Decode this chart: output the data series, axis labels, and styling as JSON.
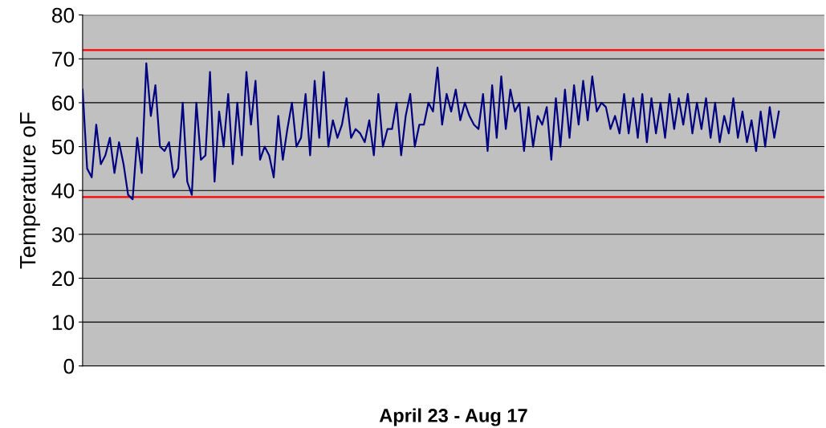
{
  "chart_data": {
    "type": "line",
    "xlabel": "April 23 - Aug 17",
    "ylabel": "Temperature oF",
    "categories": [
      null,
      null,
      null,
      null,
      null,
      null,
      null,
      null,
      null,
      null,
      null,
      null,
      null,
      null,
      null,
      null,
      null,
      null,
      null,
      null,
      null,
      null,
      null,
      null,
      null,
      null,
      null,
      null,
      null,
      null,
      null,
      null,
      null,
      null,
      null,
      null,
      null,
      null,
      null,
      null,
      null,
      null,
      null,
      null,
      null,
      null,
      null,
      null,
      null,
      null,
      null,
      null,
      null,
      null,
      null,
      null,
      null,
      null,
      null,
      null,
      null,
      null,
      null,
      null,
      null,
      null,
      null,
      null,
      null,
      null,
      null,
      null,
      null,
      null,
      null,
      null,
      null,
      null,
      null,
      null,
      null,
      null,
      null,
      null,
      null,
      null,
      null,
      null,
      null,
      null,
      null,
      null,
      null,
      null,
      null,
      null,
      null,
      null,
      null,
      null,
      null,
      null,
      null,
      null,
      null,
      null,
      null,
      null,
      null,
      null,
      null,
      null,
      null,
      null,
      null,
      null,
      null,
      null,
      null,
      null,
      null,
      null,
      null,
      null,
      null,
      null,
      null,
      null,
      null,
      null,
      null,
      null,
      null,
      null,
      null,
      null,
      null,
      null,
      null,
      null,
      null,
      null,
      null,
      null,
      null,
      null,
      null,
      null,
      null,
      null,
      null,
      null,
      null,
      null,
      null,
      null,
      null,
      null,
      null,
      null,
      null,
      null,
      null,
      null
    ],
    "series": [
      {
        "color": "#000080",
        "values": [
          63,
          45,
          43,
          55,
          46,
          48,
          52,
          44,
          51,
          46,
          39,
          38,
          52,
          44,
          69,
          57,
          64,
          50,
          49,
          51,
          43,
          45,
          60,
          42,
          39,
          60,
          47,
          48,
          67,
          42,
          58,
          50,
          62,
          46,
          60,
          48,
          67,
          55,
          65,
          47,
          50,
          48,
          43,
          57,
          47,
          54,
          60,
          50,
          52,
          62,
          48,
          65,
          52,
          67,
          50,
          56,
          52,
          55,
          61,
          52,
          54,
          53,
          51,
          56,
          48,
          62,
          50,
          54,
          54,
          60,
          48,
          57,
          62,
          50,
          55,
          55,
          60,
          58,
          68,
          55,
          62,
          58,
          63,
          56,
          60,
          57,
          55,
          54,
          62,
          49,
          64,
          52,
          66,
          54,
          63,
          58,
          60,
          49,
          59,
          50,
          57,
          55,
          59,
          47,
          61,
          50,
          63,
          52,
          64,
          55,
          65,
          56,
          66,
          58,
          60,
          59,
          54,
          57,
          53,
          62,
          53,
          61,
          52,
          62,
          51,
          61,
          53,
          60,
          52,
          62,
          54,
          61,
          55,
          62,
          53,
          60,
          54,
          61,
          52,
          60,
          51,
          57,
          53,
          61,
          52,
          58,
          51,
          56,
          49,
          58,
          50,
          59,
          52,
          58,
          null,
          null,
          null,
          null,
          null,
          null,
          null,
          null,
          null,
          null
        ]
      }
    ],
    "ylim": [
      0,
      80
    ],
    "yticks": [
      0,
      10,
      20,
      30,
      40,
      50,
      60,
      70,
      80
    ],
    "ref_lines": [
      {
        "axis": "y",
        "value": 72,
        "color": "#ff0000"
      },
      {
        "axis": "y",
        "value": 38.5,
        "color": "#ff0000"
      }
    ],
    "grid": "y",
    "tick_labels": "y",
    "marker": "none",
    "line_style": "solid"
  }
}
